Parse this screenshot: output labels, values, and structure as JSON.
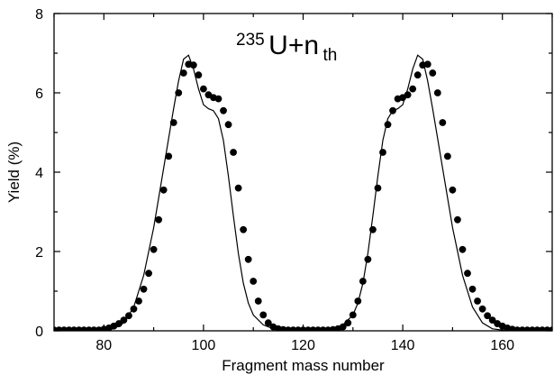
{
  "chart_data": {
    "type": "line",
    "title": "",
    "annotation": {
      "sup": "235",
      "main": "U+n",
      "sub": "th"
    },
    "xlabel": "Fragment mass number",
    "ylabel": "Yield (%)",
    "xlim": [
      70,
      170
    ],
    "ylim": [
      0,
      8
    ],
    "xticks": [
      80,
      100,
      120,
      140,
      160
    ],
    "yticks": [
      0,
      2,
      4,
      6,
      8
    ],
    "grid": false,
    "legend": "none",
    "series": [
      {
        "style": "markers",
        "marker": "filled-circle",
        "color": "#000000",
        "x": [
          70,
          71,
          72,
          73,
          74,
          75,
          76,
          77,
          78,
          79,
          80,
          81,
          82,
          83,
          84,
          85,
          86,
          87,
          88,
          89,
          90,
          91,
          92,
          93,
          94,
          95,
          96,
          97,
          98,
          99,
          100,
          101,
          102,
          103,
          104,
          105,
          106,
          107,
          108,
          109,
          110,
          111,
          112,
          113,
          114,
          115,
          116,
          117,
          118,
          119,
          120,
          121,
          122,
          123,
          124,
          125,
          126,
          127,
          128,
          129,
          130,
          131,
          132,
          133,
          134,
          135,
          136,
          137,
          138,
          139,
          140,
          141,
          142,
          143,
          144,
          145,
          146,
          147,
          148,
          149,
          150,
          151,
          152,
          153,
          154,
          155,
          156,
          157,
          158,
          159,
          160,
          161,
          162,
          163,
          164,
          165,
          166,
          167,
          168,
          169,
          170
        ],
        "y": [
          0.02,
          0.02,
          0.02,
          0.02,
          0.02,
          0.02,
          0.02,
          0.02,
          0.02,
          0.02,
          0.04,
          0.07,
          0.12,
          0.18,
          0.27,
          0.38,
          0.55,
          0.75,
          1.05,
          1.45,
          2.05,
          2.8,
          3.55,
          4.4,
          5.25,
          6.0,
          6.5,
          6.72,
          6.7,
          6.45,
          6.1,
          5.95,
          5.88,
          5.85,
          5.55,
          5.2,
          4.5,
          3.6,
          2.55,
          1.8,
          1.25,
          0.75,
          0.4,
          0.2,
          0.1,
          0.05,
          0.03,
          0.02,
          0.02,
          0.02,
          0.02,
          0.02,
          0.02,
          0.02,
          0.02,
          0.02,
          0.03,
          0.05,
          0.1,
          0.2,
          0.4,
          0.75,
          1.25,
          1.8,
          2.55,
          3.6,
          4.5,
          5.2,
          5.55,
          5.85,
          5.88,
          5.95,
          6.1,
          6.45,
          6.7,
          6.72,
          6.5,
          6.0,
          5.25,
          4.4,
          3.55,
          2.8,
          2.05,
          1.45,
          1.05,
          0.75,
          0.55,
          0.38,
          0.27,
          0.18,
          0.12,
          0.07,
          0.04,
          0.02,
          0.02,
          0.02,
          0.02,
          0.02,
          0.02,
          0.02,
          0.02
        ]
      },
      {
        "style": "line",
        "color": "#000000",
        "x": [
          70,
          78,
          80,
          82,
          84,
          86,
          88,
          90,
          92,
          94,
          95,
          96,
          97,
          98,
          99,
          100,
          101,
          102,
          103,
          104,
          105,
          106,
          107,
          108,
          109,
          110,
          112,
          114,
          116,
          118,
          120,
          122,
          124,
          126,
          128,
          130,
          131,
          132,
          133,
          134,
          135,
          136,
          137,
          138,
          139,
          140,
          141,
          142,
          143,
          144,
          145,
          146,
          148,
          150,
          152,
          154,
          156,
          158,
          160,
          162,
          170
        ],
        "y": [
          0.01,
          0.01,
          0.02,
          0.05,
          0.2,
          0.6,
          1.4,
          2.6,
          4.1,
          5.6,
          6.3,
          6.85,
          6.95,
          6.6,
          6.1,
          5.7,
          5.6,
          5.55,
          5.35,
          4.8,
          3.9,
          2.9,
          1.95,
          1.2,
          0.7,
          0.4,
          0.15,
          0.05,
          0.02,
          0.01,
          0.01,
          0.01,
          0.02,
          0.05,
          0.15,
          0.4,
          0.7,
          1.2,
          1.95,
          2.9,
          3.9,
          4.8,
          5.35,
          5.55,
          5.6,
          5.7,
          6.1,
          6.6,
          6.95,
          6.85,
          6.3,
          5.6,
          4.1,
          2.6,
          1.4,
          0.6,
          0.2,
          0.05,
          0.02,
          0.01,
          0.01
        ]
      }
    ]
  }
}
